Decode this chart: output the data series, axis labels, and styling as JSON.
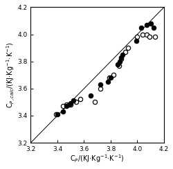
{
  "xlabel": "C$_P$/(KJ·Kg$^{-1}$·K$^{-1}$)",
  "ylabel": "C$_{P,calc}$/(KJ·Kg$^{-1}$·K$^{-1}$)",
  "xlim": [
    3.2,
    4.2
  ],
  "ylim": [
    3.2,
    4.2
  ],
  "xticks": [
    3.2,
    3.4,
    3.6,
    3.8,
    4.0,
    4.2
  ],
  "yticks": [
    3.2,
    3.4,
    3.6,
    3.8,
    4.0,
    4.2
  ],
  "filled_points": [
    [
      3.4,
      3.41
    ],
    [
      3.44,
      3.43
    ],
    [
      3.47,
      3.47
    ],
    [
      3.49,
      3.48
    ],
    [
      3.5,
      3.49
    ],
    [
      3.52,
      3.51
    ],
    [
      3.65,
      3.55
    ],
    [
      3.72,
      3.63
    ],
    [
      3.78,
      3.65
    ],
    [
      3.8,
      3.68
    ],
    [
      3.85,
      3.78
    ],
    [
      3.87,
      3.8
    ],
    [
      3.88,
      3.83
    ],
    [
      3.89,
      3.85
    ],
    [
      3.99,
      3.95
    ],
    [
      4.03,
      4.05
    ],
    [
      4.07,
      4.07
    ],
    [
      4.1,
      4.08
    ],
    [
      4.12,
      4.05
    ]
  ],
  "open_points": [
    [
      3.39,
      3.41
    ],
    [
      3.44,
      3.47
    ],
    [
      3.47,
      3.48
    ],
    [
      3.5,
      3.48
    ],
    [
      3.54,
      3.5
    ],
    [
      3.57,
      3.52
    ],
    [
      3.68,
      3.5
    ],
    [
      3.72,
      3.6
    ],
    [
      3.79,
      3.68
    ],
    [
      3.82,
      3.7
    ],
    [
      3.86,
      3.77
    ],
    [
      3.88,
      3.82
    ],
    [
      3.91,
      3.87
    ],
    [
      3.93,
      3.9
    ],
    [
      4.0,
      3.98
    ],
    [
      4.04,
      4.0
    ],
    [
      4.07,
      4.0
    ],
    [
      4.09,
      3.98
    ],
    [
      4.13,
      3.98
    ]
  ],
  "filled_color": "black",
  "open_facecolor": "white",
  "open_edgecolor": "black",
  "marker_size": 4.5,
  "line_color": "black",
  "line_style": "-",
  "line_width": 0.7,
  "tick_fontsize": 6.5,
  "label_fontsize": 7,
  "marker_edge_width": 0.9
}
